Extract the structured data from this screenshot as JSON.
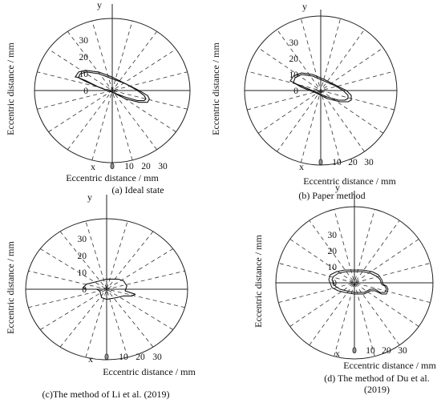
{
  "chart_data": [
    {
      "type": "polar",
      "caption": "(a) Ideal state",
      "xlabel": "Eccentric distance / mm",
      "ylabel": "Eccentric distance / mm",
      "x_axis_name": "x",
      "y_axis_name": "y",
      "x_ticks": [
        "0",
        "10",
        "20",
        "30"
      ],
      "y_ticks": [
        "0",
        "10",
        "20",
        "30"
      ],
      "series": [
        {
          "x": [
            -20,
            -19,
            -15,
            -8,
            0,
            8,
            15,
            19,
            20,
            19,
            15,
            8,
            0,
            -8,
            -15,
            -19,
            -20
          ],
          "y": [
            8,
            10,
            11,
            10,
            7,
            4,
            0,
            -3,
            -5,
            -6,
            -6,
            -4,
            -1,
            2,
            5,
            7,
            8
          ]
        },
        {
          "x": [
            -22,
            -20,
            -16,
            -8,
            0,
            8,
            16,
            21,
            22,
            21,
            16,
            8,
            0,
            -8,
            -16,
            -21,
            -22
          ],
          "y": [
            8,
            11,
            12,
            11,
            8,
            4,
            0,
            -3,
            -5,
            -7,
            -7,
            -5,
            -1,
            2,
            6,
            8,
            8
          ]
        }
      ]
    },
    {
      "type": "polar",
      "caption": "(b) Paper method",
      "xlabel": "Eccentric distance / mm",
      "ylabel": "Eccentric distance / mm",
      "x_axis_name": "x",
      "y_axis_name": "y",
      "x_ticks": [
        "0",
        "10",
        "20",
        "30"
      ],
      "y_ticks": [
        "0",
        "10",
        "20",
        "30"
      ],
      "series": [
        {
          "x": [
            -17,
            -16,
            -12,
            -5,
            2,
            9,
            14,
            17,
            17,
            15,
            11,
            4,
            -3,
            -10,
            -15,
            -17
          ],
          "y": [
            5,
            8,
            10,
            9,
            6,
            3,
            0,
            -3,
            -5,
            -6,
            -6,
            -4,
            -1,
            2,
            4,
            5
          ]
        },
        {
          "x": [
            -19,
            -17,
            -12,
            -5,
            2,
            10,
            16,
            19,
            19,
            17,
            12,
            4,
            -4,
            -12,
            -17,
            -19
          ],
          "y": [
            6,
            9,
            11,
            10,
            7,
            3,
            0,
            -3,
            -6,
            -7,
            -7,
            -5,
            -1,
            2,
            5,
            6
          ]
        }
      ]
    },
    {
      "type": "polar",
      "caption": "(c)The method of Li et al. (2019)",
      "xlabel": "Eccentric distance / mm",
      "ylabel": "Eccentric distance / mm",
      "x_axis_name": "x",
      "y_axis_name": "y",
      "x_ticks": [
        "0",
        "10",
        "20",
        "30"
      ],
      "y_ticks": [
        "0",
        "10",
        "20",
        "30"
      ],
      "series": [
        {
          "x": [
            -14,
            -12,
            -8,
            -4,
            0,
            4,
            7,
            10,
            12,
            11,
            14,
            17,
            15,
            10,
            6,
            0,
            -3,
            -4,
            -6,
            -9,
            -12,
            -14
          ],
          "y": [
            1,
            3,
            4,
            5,
            6,
            6,
            6,
            5,
            2,
            -1,
            -2,
            -3,
            -4,
            -4,
            -5,
            -6,
            -5,
            -1,
            0,
            0,
            0,
            1
          ]
        }
      ]
    },
    {
      "type": "polar",
      "caption": "(d) The method of Du et al. (2019)",
      "xlabel": "Eccentric distance / mm",
      "ylabel": "Eccentric distance / mm",
      "x_axis_name": "x",
      "y_axis_name": "y",
      "x_ticks": [
        "0",
        "10",
        "20",
        "30"
      ],
      "y_ticks": [
        "0",
        "10",
        "20",
        "30"
      ],
      "series": [
        {
          "x": [
            -14,
            -13,
            -10,
            -5,
            0,
            5,
            10,
            14,
            16,
            17,
            19,
            20,
            19,
            16,
            13,
            10,
            6,
            0,
            -5,
            -9,
            -12,
            -14
          ],
          "y": [
            2,
            4,
            6,
            7,
            7,
            7,
            6,
            4,
            2,
            -1,
            -2,
            -4,
            -6,
            -6,
            -4,
            -4,
            -6,
            -6,
            -5,
            -4,
            -2,
            2
          ]
        },
        {
          "x": [
            -16,
            -15,
            -11,
            -6,
            0,
            5,
            11,
            15,
            17,
            18,
            20,
            21,
            20,
            17,
            13,
            10,
            6,
            0,
            -6,
            -10,
            -14,
            -16
          ],
          "y": [
            2,
            5,
            7,
            8,
            8,
            8,
            7,
            5,
            2,
            -1,
            -2,
            -4,
            -7,
            -7,
            -5,
            -5,
            -7,
            -7,
            -6,
            -5,
            -3,
            2
          ]
        }
      ]
    }
  ]
}
